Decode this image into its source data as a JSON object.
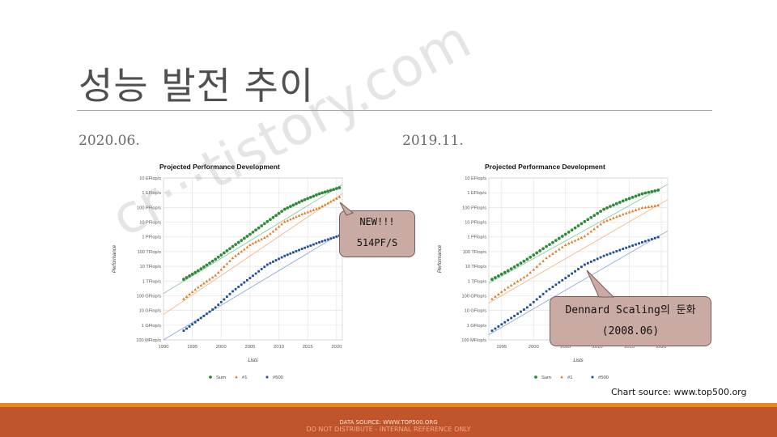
{
  "slide": {
    "title": "성능 발전 추이",
    "left_date": "2020.06.",
    "right_date": "2019.11.",
    "watermark": "cr···tistory.com",
    "source_note": "Chart source: www.top500.org",
    "footer_line1": "DATA SOURCE: WWW.TOP500.ORG",
    "footer_line2": "DO NOT DISTRIBUTE - INTERNAL REFERENCE ONLY",
    "callout_new_line1": "NEW!!!",
    "callout_new_line2": "514PF/S",
    "callout_dennard_line1": "Dennard Scaling의 둔화",
    "callout_dennard_line2": "(2008.06)"
  },
  "colors": {
    "sum": "#2e8b3a",
    "no1": "#e07b20",
    "no500": "#1f4e96",
    "sum_trend": "#8fc99a",
    "no1_trend": "#f0b58a",
    "no500_trend": "#8fa9d8",
    "callout": "#c9aba4",
    "footer": "#c0542a"
  },
  "chart_data": [
    {
      "type": "scatter",
      "title": "Projected Performance Development",
      "xlabel": "Lists",
      "ylabel": "Performance",
      "y_scale": "log",
      "xlim": [
        1990,
        2021
      ],
      "x_ticks": [
        "1990",
        "1995",
        "2000",
        "2005",
        "2010",
        "2015",
        "2020"
      ],
      "y_ticks": [
        "100 MFlop/s",
        "1 GFlop/s",
        "10 GFlop/s",
        "100 GFlop/s",
        "1 TFlop/s",
        "10 TFlop/s",
        "100 TFlop/s",
        "1 PFlop/s",
        "10 PFlop/s",
        "100 PFlop/s",
        "1 EFlop/s",
        "10 EFlop/s"
      ],
      "legend": [
        "Sum",
        "#1",
        "#500"
      ],
      "legend_position": "bottom",
      "grid": true,
      "series": [
        {
          "name": "Sum",
          "x": [
            1993.5,
            1996,
            1999,
            2002,
            2005,
            2008,
            2011,
            2014,
            2017,
            2020.5
          ],
          "y": [
            1300000000000.0,
            5000000000000.0,
            30000000000000.0,
            220000000000000.0,
            1500000000000000.0,
            1.1e+16,
            7.5e+16,
            2.8e+17,
            8.5e+17,
            2.2e+18
          ]
        },
        {
          "name": "#1",
          "x": [
            1993.5,
            1996,
            1999,
            2002,
            2005,
            2008,
            2011,
            2014,
            2017,
            2020.5
          ],
          "y": [
            60000000000.0,
            370000000000.0,
            2400000000000.0,
            36000000000000.0,
            280000000000000.0,
            1100000000000000.0,
            1.05e+16,
            3.4e+16,
            9.3e+16,
            5.14e+17
          ]
        },
        {
          "name": "#500",
          "x": [
            1993.5,
            1996,
            1999,
            2002,
            2005,
            2008,
            2011,
            2014,
            2017,
            2020.5
          ],
          "y": [
            420000000.0,
            2200000000.0,
            16000000000.0,
            200000000000.0,
            1600000000000.0,
            13000000000000.0,
            51000000000000.0,
            153000000000000.0,
            430000000000000.0,
            1200000000000000.0
          ]
        }
      ]
    },
    {
      "type": "scatter",
      "title": "Projected Performance Development",
      "xlabel": "Lists",
      "ylabel": "Performance",
      "y_scale": "log",
      "xlim": [
        1993,
        2021
      ],
      "x_ticks": [
        "1995",
        "2000",
        "2005",
        "2010",
        "2015",
        "2020"
      ],
      "y_ticks": [
        "100 MFlop/s",
        "1 GFlop/s",
        "10 GFlop/s",
        "100 GFlop/s",
        "1 TFlop/s",
        "10 TFlop/s",
        "100 TFlop/s",
        "1 PFlop/s",
        "10 PFlop/s",
        "100 PFlop/s",
        "1 EFlop/s",
        "10 EFlop/s"
      ],
      "legend": [
        "Sum",
        "#1",
        "#500"
      ],
      "legend_position": "bottom",
      "grid": true,
      "series": [
        {
          "name": "Sum",
          "x": [
            1993.5,
            1996,
            1999,
            2002,
            2005,
            2008,
            2011,
            2014,
            2017,
            2019.9
          ],
          "y": [
            1300000000000.0,
            5000000000000.0,
            30000000000000.0,
            220000000000000.0,
            1500000000000000.0,
            1.1e+16,
            7.5e+16,
            2.8e+17,
            8.5e+17,
            1.65e+18
          ]
        },
        {
          "name": "#1",
          "x": [
            1993.5,
            1996,
            1999,
            2002,
            2005,
            2008,
            2011,
            2014,
            2017,
            2019.9
          ],
          "y": [
            60000000000.0,
            370000000000.0,
            2400000000000.0,
            36000000000000.0,
            280000000000000.0,
            1100000000000000.0,
            1.05e+16,
            3.4e+16,
            9.3e+16,
            1.48e+17
          ]
        },
        {
          "name": "#500",
          "x": [
            1993.5,
            1996,
            1999,
            2002,
            2005,
            2008,
            2011,
            2014,
            2017,
            2019.9
          ],
          "y": [
            420000000.0,
            2200000000.0,
            16000000000.0,
            200000000000.0,
            1600000000000.0,
            13000000000000.0,
            51000000000000.0,
            153000000000000.0,
            430000000000000.0,
            1100000000000000.0
          ]
        }
      ]
    }
  ]
}
